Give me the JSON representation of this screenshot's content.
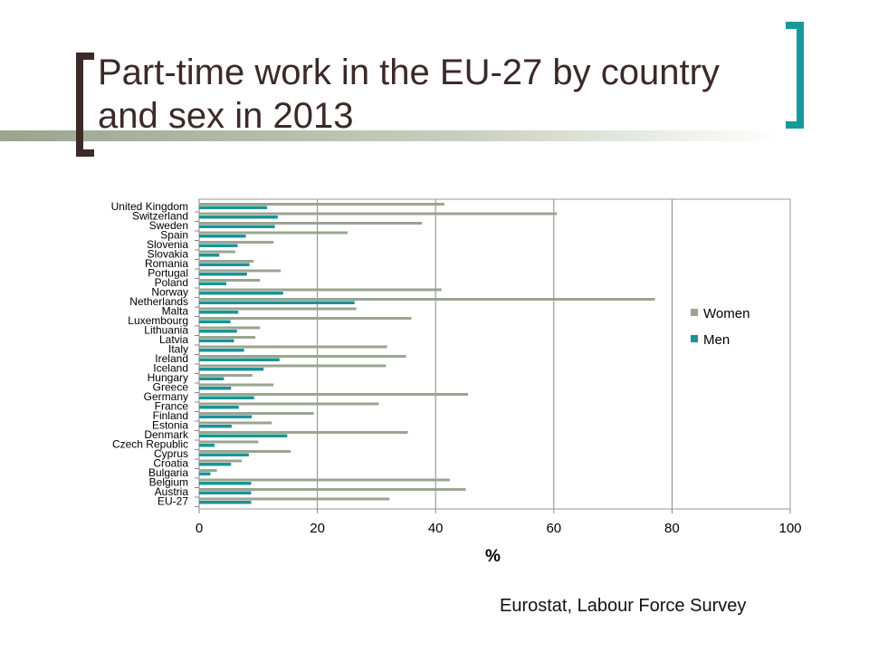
{
  "slide": {
    "title": "Part-time work in the EU-27 by country and sex in 2013",
    "source": "Eurostat, Labour Force Survey"
  },
  "colors": {
    "title": "#3b2a28",
    "bracket_left": "#3b2a28",
    "bracket_right": "#16999a",
    "women": "#9aa591",
    "men": "#1a9494",
    "grid": "#888888"
  },
  "chart_data": {
    "type": "bar",
    "orientation": "horizontal",
    "xlabel": "%",
    "ylabel": "",
    "xlim": [
      0,
      100
    ],
    "xticks": [
      "0",
      "20",
      "40",
      "60",
      "80",
      "100"
    ],
    "grid": true,
    "legend_position": "right",
    "categories": [
      "United Kingdom",
      "Switzerland",
      "Sweden",
      "Spain",
      "Slovenia",
      "Slovakia",
      "Romania",
      "Portugal",
      "Poland",
      "Norway",
      "Netherlands",
      "Malta",
      "Luxembourg",
      "Lithuania",
      "Latvia",
      "Italy",
      "Ireland",
      "Iceland",
      "Hungary",
      "Greece",
      "Germany",
      "France",
      "Finland",
      "Estonia",
      "Denmark",
      "Czech Republic",
      "Cyprus",
      "Croatia",
      "Bulgaria",
      "Belgium",
      "Austria",
      "EU-27"
    ],
    "series": [
      {
        "name": "Women",
        "values": [
          41.5,
          60.5,
          37.7,
          25.1,
          12.6,
          6.1,
          9.2,
          13.8,
          10.3,
          41.0,
          77.1,
          26.6,
          35.9,
          10.3,
          9.5,
          31.8,
          35.0,
          31.6,
          9.0,
          12.6,
          45.5,
          30.4,
          19.4,
          12.3,
          35.3,
          10.0,
          15.5,
          7.2,
          3.0,
          42.4,
          45.1,
          32.2
        ]
      },
      {
        "name": "Men",
        "values": [
          11.5,
          13.3,
          12.8,
          7.9,
          6.5,
          3.4,
          8.5,
          8.1,
          4.6,
          14.2,
          26.3,
          6.6,
          5.3,
          6.4,
          5.9,
          7.6,
          13.6,
          10.9,
          4.2,
          5.4,
          9.3,
          6.7,
          8.9,
          5.5,
          14.9,
          2.6,
          8.4,
          5.4,
          1.9,
          8.8,
          8.8,
          8.8
        ]
      }
    ]
  }
}
